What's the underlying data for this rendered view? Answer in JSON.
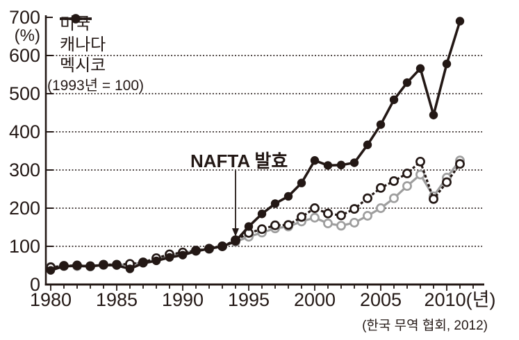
{
  "colors": {
    "axis": "#231815",
    "usa_line": "#9e9e9e",
    "black_line": "#231815",
    "background": "#ffffff"
  },
  "chart_data": {
    "type": "line",
    "title": "",
    "y_unit_label": "(%)",
    "x_label_suffix": "(년)",
    "index_note": "(1993년 = 100)",
    "source": "(한국 무역 협회, 2012)",
    "ylim": [
      0,
      700
    ],
    "yticks": [
      0,
      100,
      200,
      300,
      400,
      500,
      600,
      700
    ],
    "xticks": [
      1980,
      1985,
      1990,
      1995,
      2000,
      2005,
      2010
    ],
    "grid": "horizontal-dotted",
    "legend_position": "top-left-inside",
    "annotation": {
      "text": "NAFTA 발효",
      "year": 1994,
      "value": 113
    },
    "x": [
      1980,
      1981,
      1982,
      1983,
      1984,
      1985,
      1986,
      1987,
      1988,
      1989,
      1990,
      1991,
      1992,
      1993,
      1994,
      1995,
      1996,
      1997,
      1998,
      1999,
      2000,
      2001,
      2002,
      2003,
      2004,
      2005,
      2006,
      2007,
      2008,
      2009,
      2010,
      2011
    ],
    "series": [
      {
        "id": "usa",
        "name": "미국",
        "color": "#9e9e9e",
        "line": "solid",
        "marker": "open",
        "values": [
          46,
          48,
          48,
          47,
          51,
          51,
          53,
          57,
          65,
          76,
          82,
          88,
          93,
          100,
          112,
          125,
          136,
          147,
          152,
          165,
          175,
          160,
          154,
          162,
          180,
          200,
          226,
          258,
          288,
          231,
          280,
          325
        ]
      },
      {
        "id": "canada",
        "name": "캐나다",
        "color": "#231815",
        "line": "dashed",
        "marker": "open",
        "values": [
          45,
          49,
          50,
          48,
          52,
          52,
          54,
          58,
          69,
          79,
          84,
          89,
          94,
          100,
          116,
          135,
          145,
          155,
          156,
          177,
          200,
          186,
          181,
          198,
          226,
          253,
          271,
          291,
          322,
          224,
          268,
          316
        ]
      },
      {
        "id": "mexico",
        "name": "멕시코",
        "color": "#231815",
        "line": "solid",
        "marker": "filled",
        "values": [
          37,
          48,
          49,
          48,
          51,
          50,
          41,
          56,
          62,
          71,
          77,
          87,
          94,
          100,
          113,
          152,
          185,
          212,
          231,
          266,
          325,
          312,
          313,
          319,
          366,
          419,
          484,
          529,
          566,
          444,
          578,
          690
        ]
      }
    ]
  }
}
